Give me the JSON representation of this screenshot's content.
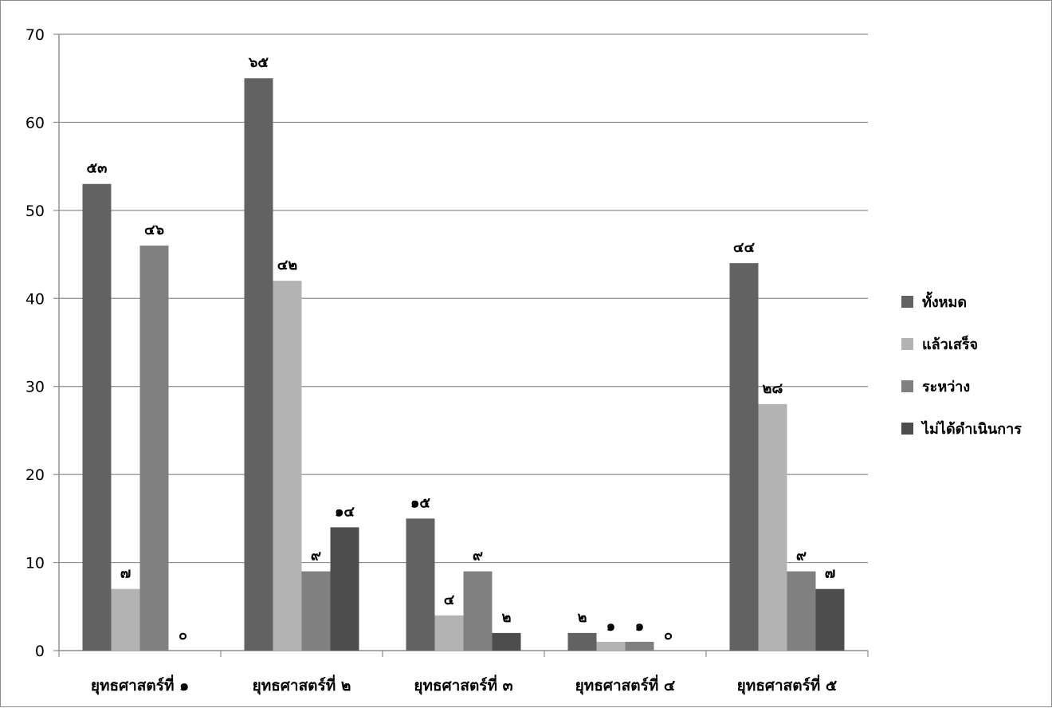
{
  "chart_data": {
    "type": "bar",
    "title": "",
    "xlabel": "",
    "ylabel": "",
    "ylim": [
      0,
      70
    ],
    "yticks": [
      0,
      10,
      20,
      30,
      40,
      50,
      60,
      70
    ],
    "grid": true,
    "legend_position": "right",
    "categories": [
      "ยุทธศาสตร์ที่ ๑",
      "ยุทธศาสตร์ที่ ๒",
      "ยุทธศาสตร์ที่ ๓",
      "ยุทธศาสตร์ที่ ๔",
      "ยุทธศาสตร์ที่ ๕"
    ],
    "series": [
      {
        "name": "ทั้งหมด",
        "color": "#626262",
        "values": [
          53,
          65,
          15,
          2,
          44
        ],
        "labels": [
          "๕๓",
          "๖๕",
          "๑๕",
          "๒",
          "๔๔"
        ]
      },
      {
        "name": "แล้วเสร็จ",
        "color": "#b3b3b3",
        "values": [
          7,
          42,
          4,
          1,
          28
        ],
        "labels": [
          "๗",
          "๔๒",
          "๔",
          "๑",
          "๒๘"
        ]
      },
      {
        "name": "ระหว่าง",
        "color": "#808080",
        "values": [
          46,
          9,
          9,
          1,
          9
        ],
        "labels": [
          "๔๖",
          "๙",
          "๙",
          "๑",
          "๙"
        ]
      },
      {
        "name": "ไม่ได้ดำเนินการ",
        "color": "#4d4d4d",
        "values": [
          0,
          14,
          2,
          0,
          7
        ],
        "labels": [
          "๐",
          "๑๔",
          "๒",
          "๐",
          "๗"
        ]
      }
    ]
  }
}
